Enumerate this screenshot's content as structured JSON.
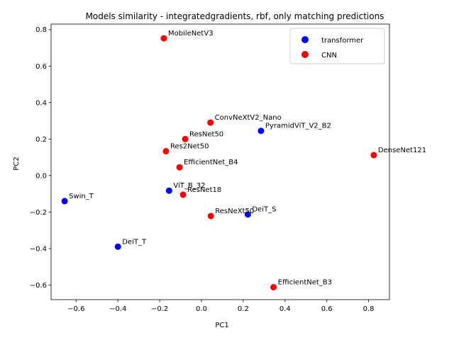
{
  "chart_data": {
    "type": "scatter",
    "title": "Models similarity - integratedgradients, rbf, only matching predictions",
    "xlabel": "PC1",
    "ylabel": "PC2",
    "xlim": [
      -0.72,
      0.9
    ],
    "ylim": [
      -0.68,
      0.83
    ],
    "x_ticks": [
      -0.6,
      -0.4,
      -0.2,
      0.0,
      0.2,
      0.4,
      0.6,
      0.8
    ],
    "y_ticks": [
      -0.6,
      -0.4,
      -0.2,
      0.0,
      0.2,
      0.4,
      0.6,
      0.8
    ],
    "x_tick_labels": [
      "−0.6",
      "−0.4",
      "−0.2",
      "0.0",
      "0.2",
      "0.4",
      "0.6",
      "0.8"
    ],
    "y_tick_labels": [
      "−0.6",
      "−0.4",
      "−0.2",
      "0.0",
      "0.2",
      "0.4",
      "0.6",
      "0.8"
    ],
    "grid": false,
    "legend_position": "top-right",
    "series": [
      {
        "name": "transformer",
        "color": "#0000ff",
        "points": [
          {
            "label": "PyramidViT_V2_B2",
            "x": 0.285,
            "y": 0.245
          },
          {
            "label": "Swin_T",
            "x": -0.655,
            "y": -0.14
          },
          {
            "label": "ViT_B_32",
            "x": -0.155,
            "y": -0.083
          },
          {
            "label": "DeiT_S",
            "x": 0.222,
            "y": -0.213
          },
          {
            "label": "DeiT_T",
            "x": -0.4,
            "y": -0.39
          }
        ]
      },
      {
        "name": "CNN",
        "color": "#ff0000",
        "points": [
          {
            "label": "MobileNetV3",
            "x": -0.18,
            "y": 0.752
          },
          {
            "label": "ConvNeXtV2_Nano",
            "x": 0.043,
            "y": 0.29
          },
          {
            "label": "ResNet50",
            "x": -0.078,
            "y": 0.2
          },
          {
            "label": "Res2Net50",
            "x": -0.17,
            "y": 0.133
          },
          {
            "label": "EfficientNet_B4",
            "x": -0.105,
            "y": 0.045
          },
          {
            "label": "ResNet18",
            "x": -0.088,
            "y": -0.105
          },
          {
            "label": "ResNeXt50",
            "x": 0.045,
            "y": -0.222
          },
          {
            "label": "DenseNet121",
            "x": 0.825,
            "y": 0.112
          },
          {
            "label": "EfficientNet_B3",
            "x": 0.345,
            "y": -0.612
          }
        ]
      }
    ]
  }
}
